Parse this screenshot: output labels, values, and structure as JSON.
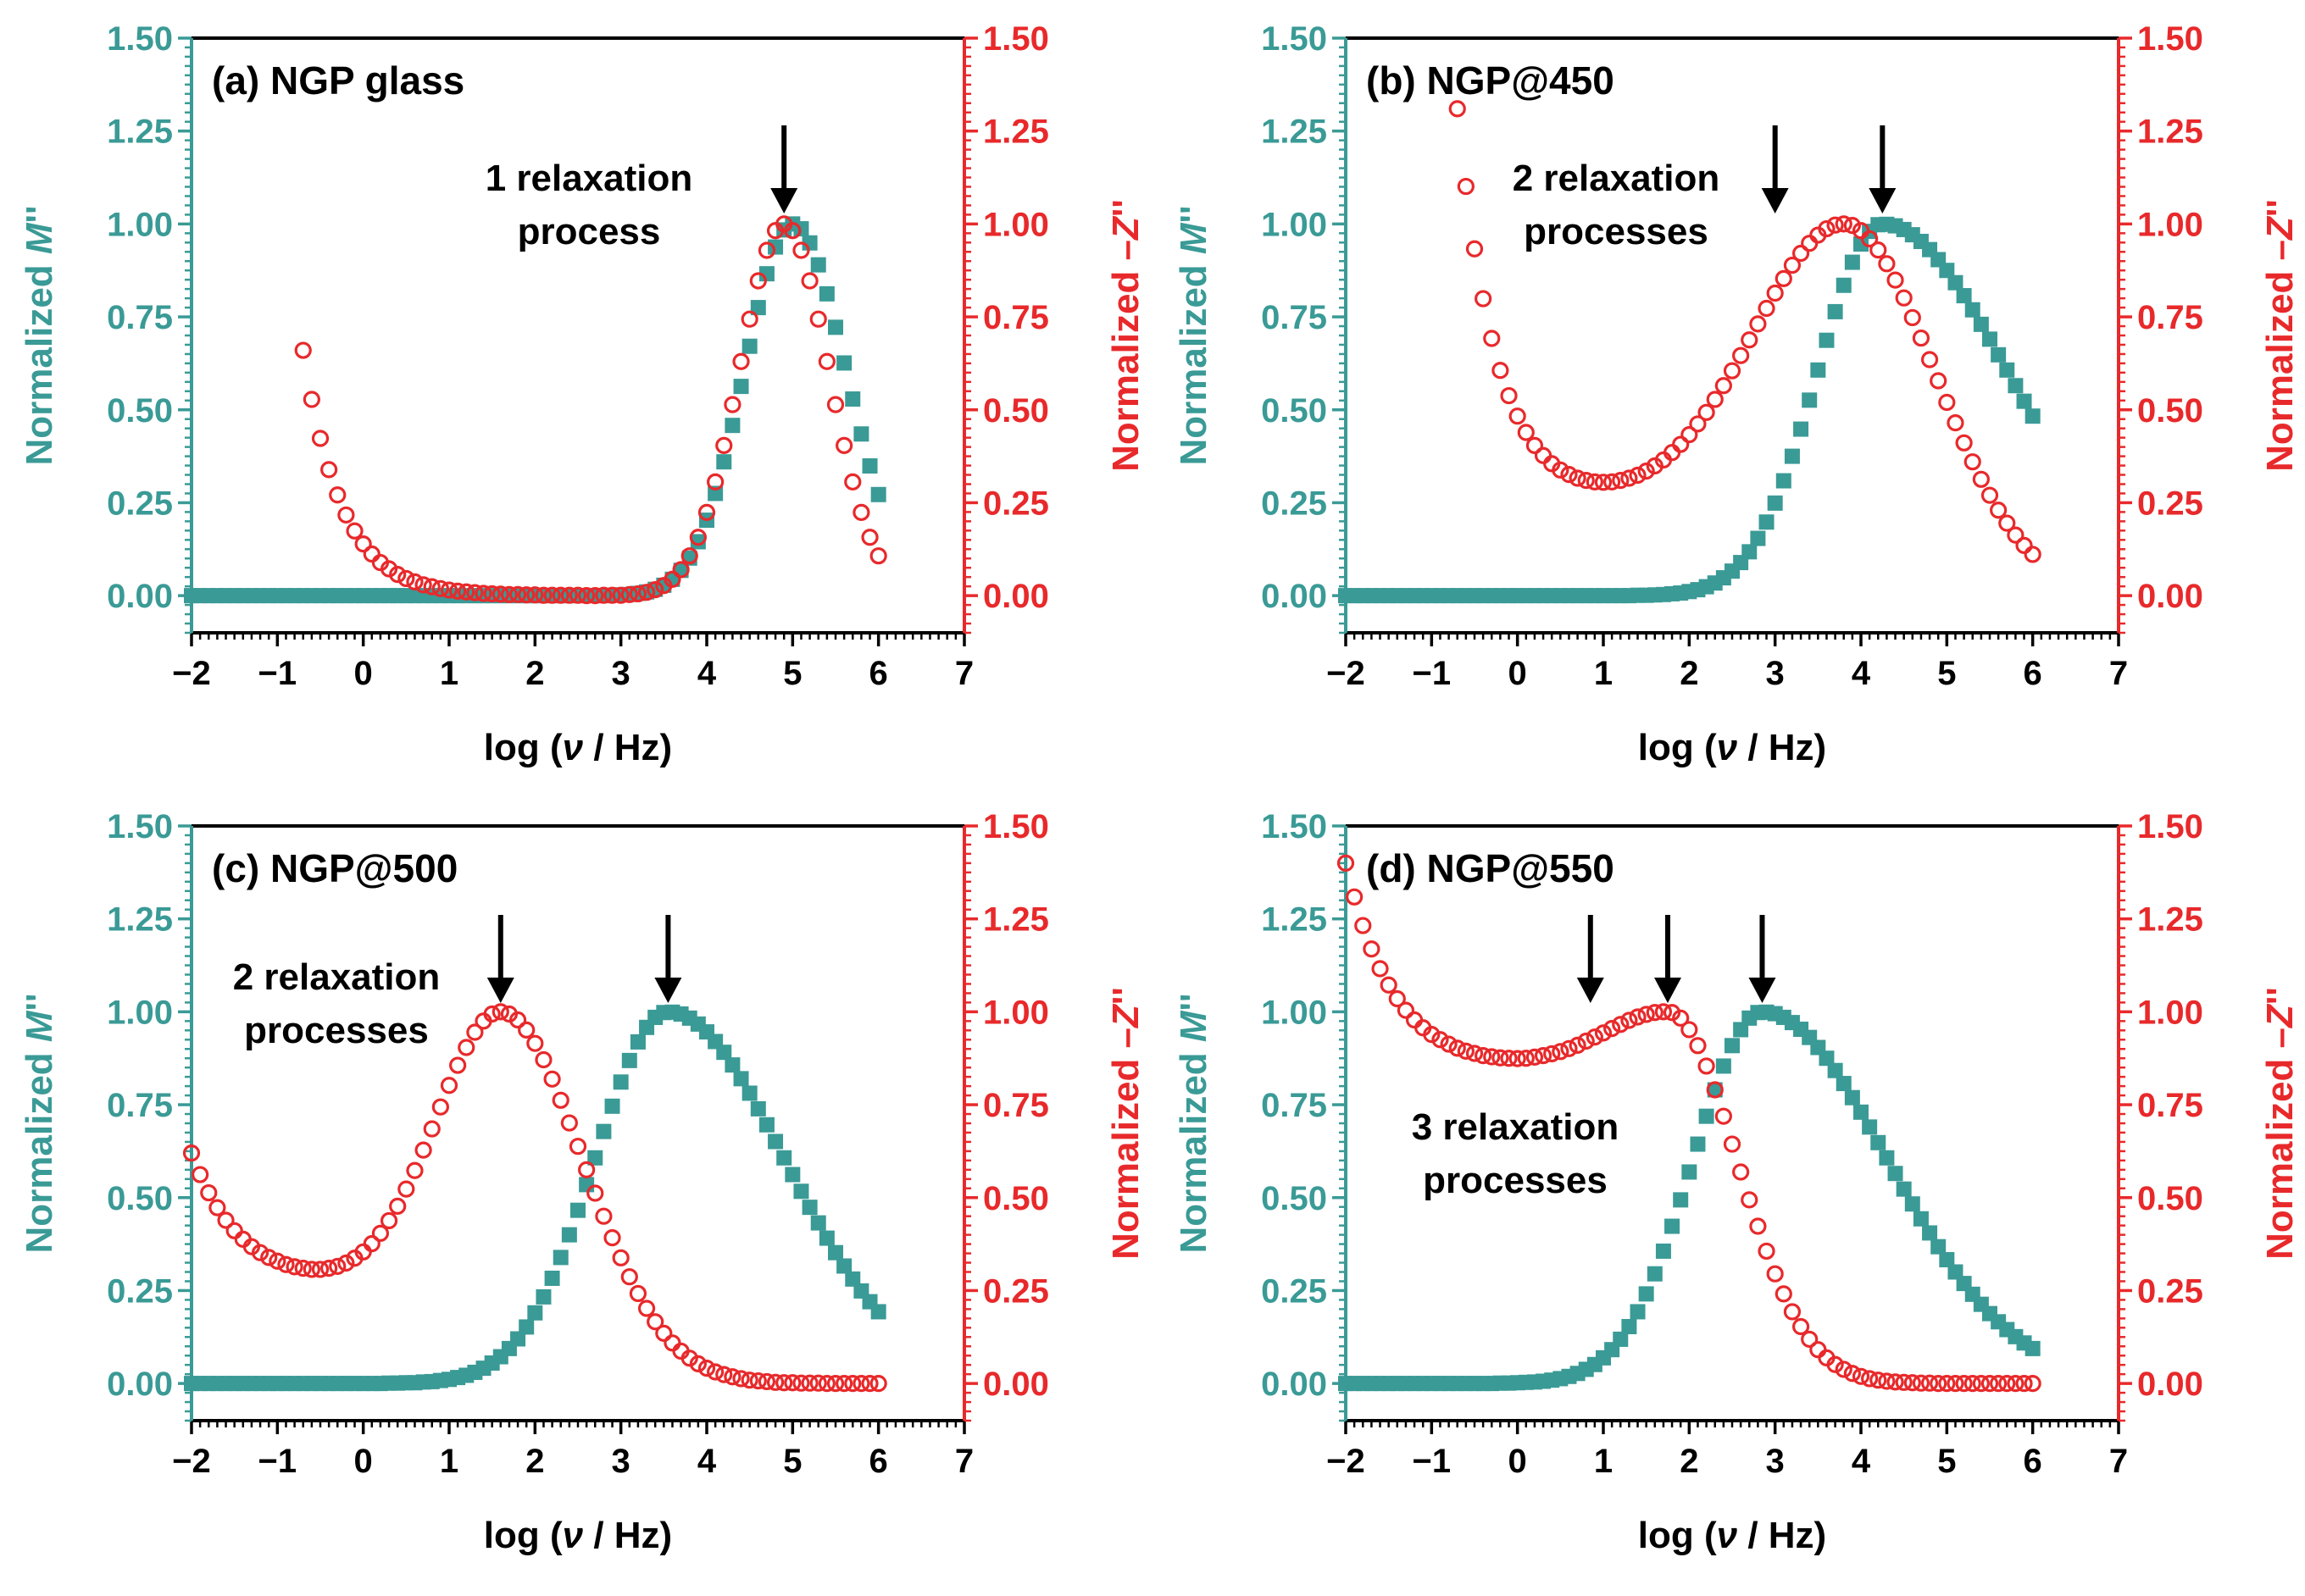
{
  "colors": {
    "m_series": "#3a9a96",
    "z_series": "#e8292b",
    "axis": "#000000"
  },
  "chart_data": [
    {
      "type": "scatter",
      "title": "(a) NGP glass",
      "xlabel": "log (ν / Hz)",
      "xlabel_parts": [
        "log (",
        "ν",
        " / Hz)"
      ],
      "ylabel_left": [
        "Normalized ",
        "M",
        "''"
      ],
      "ylabel_right": [
        "Normalized –",
        "Z",
        "''"
      ],
      "xlim": [
        -2,
        7
      ],
      "ylim": [
        -0.1,
        1.5
      ],
      "xticks": [
        "−2",
        "−1",
        "0",
        "1",
        "2",
        "3",
        "4",
        "5",
        "6",
        "7"
      ],
      "yticks": [
        "0.00",
        "0.25",
        "0.50",
        "0.75",
        "1.00",
        "1.25",
        "1.50"
      ],
      "annotation": [
        "1 relaxation",
        "process"
      ],
      "arrows_x": [
        4.9
      ],
      "series": [
        {
          "name": "Normalized M''",
          "marker": "square",
          "x": [],
          "y": []
        },
        {
          "name": "Normalized -Z''",
          "marker": "circle",
          "x": [],
          "y": []
        }
      ]
    },
    {
      "type": "scatter",
      "title": "(b) NGP@450",
      "xlabel": "log (ν / Hz)",
      "xlabel_parts": [
        "log (",
        "ν",
        " / Hz)"
      ],
      "ylabel_left": [
        "Normalized ",
        "M",
        "''"
      ],
      "ylabel_right": [
        "Normalized –",
        "Z",
        "''"
      ],
      "xlim": [
        -2,
        7
      ],
      "ylim": [
        -0.1,
        1.5
      ],
      "xticks": [
        "−2",
        "−1",
        "0",
        "1",
        "2",
        "3",
        "4",
        "5",
        "6",
        "7"
      ],
      "yticks": [
        "0.00",
        "0.25",
        "0.50",
        "0.75",
        "1.00",
        "1.25",
        "1.50"
      ],
      "annotation": [
        "2 relaxation",
        "processes"
      ],
      "arrows_x": [
        3.0,
        4.25
      ],
      "series": [
        {
          "name": "Normalized M''",
          "marker": "square",
          "x": [],
          "y": []
        },
        {
          "name": "Normalized -Z''",
          "marker": "circle",
          "x": [],
          "y": []
        }
      ]
    },
    {
      "type": "scatter",
      "title": "(c) NGP@500",
      "xlabel": "log (ν / Hz)",
      "xlabel_parts": [
        "log (",
        "ν",
        " / Hz)"
      ],
      "ylabel_left": [
        "Normalized ",
        "M",
        "''"
      ],
      "ylabel_right": [
        "Normalized –",
        "Z",
        "''"
      ],
      "xlim": [
        -2,
        7
      ],
      "ylim": [
        -0.1,
        1.5
      ],
      "xticks": [
        "−2",
        "−1",
        "0",
        "1",
        "2",
        "3",
        "4",
        "5",
        "6",
        "7"
      ],
      "yticks": [
        "0.00",
        "0.25",
        "0.50",
        "0.75",
        "1.00",
        "1.25",
        "1.50"
      ],
      "annotation": [
        "2 relaxation",
        "processes"
      ],
      "arrows_x": [
        1.6,
        3.55
      ],
      "series": [
        {
          "name": "Normalized M''",
          "marker": "square",
          "x": [],
          "y": []
        },
        {
          "name": "Normalized -Z''",
          "marker": "circle",
          "x": [],
          "y": []
        }
      ]
    },
    {
      "type": "scatter",
      "title": "(d) NGP@550",
      "xlabel": "log (ν / Hz)",
      "xlabel_parts": [
        "log (",
        "ν",
        " / Hz)"
      ],
      "ylabel_left": [
        "Normalized ",
        "M",
        "''"
      ],
      "ylabel_right": [
        "Normalized –",
        "Z",
        "''"
      ],
      "xlim": [
        -2,
        7
      ],
      "ylim": [
        -0.1,
        1.5
      ],
      "xticks": [
        "−2",
        "−1",
        "0",
        "1",
        "2",
        "3",
        "4",
        "5",
        "6",
        "7"
      ],
      "yticks": [
        "0.00",
        "0.25",
        "0.50",
        "0.75",
        "1.00",
        "1.25",
        "1.50"
      ],
      "annotation": [
        "3 relaxation",
        "processes"
      ],
      "arrows_x": [
        0.85,
        1.75,
        2.85
      ],
      "series": [
        {
          "name": "Normalized M''",
          "marker": "square",
          "x": [],
          "y": []
        },
        {
          "name": "Normalized -Z''",
          "marker": "circle",
          "x": [],
          "y": []
        }
      ]
    }
  ]
}
